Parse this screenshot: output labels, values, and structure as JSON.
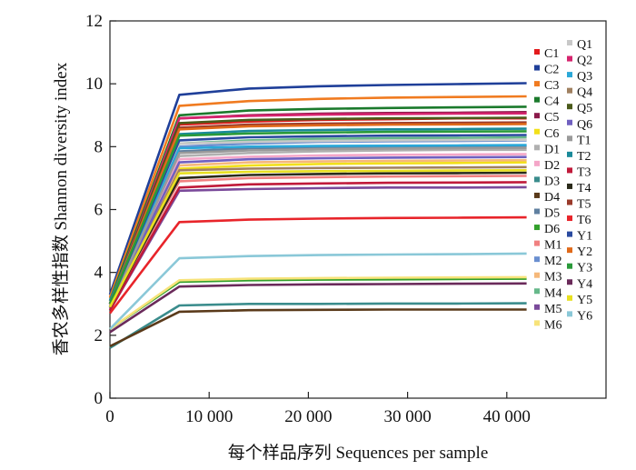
{
  "chart_data": {
    "type": "line",
    "xlabel": "每个样品序列  Sequences per sample",
    "ylabel": "香农多样性指数  Shannon diversity index",
    "xlim": [
      0,
      50000
    ],
    "ylim": [
      0,
      12
    ],
    "x_ticks": [
      "0",
      "10 000",
      "20 000",
      "30 000",
      "40 000"
    ],
    "y_ticks": [
      "0",
      "2",
      "4",
      "6",
      "8",
      "10",
      "12"
    ],
    "x_tick_values": [
      0,
      10000,
      20000,
      30000,
      40000
    ],
    "y_tick_values": [
      0,
      2,
      4,
      6,
      8,
      10,
      12
    ],
    "grid": false,
    "legend_position": "right",
    "series": [
      {
        "name": "C1",
        "color": "#e31a1c",
        "x": [
          0,
          7000,
          14000,
          21000,
          28000,
          35000,
          42000
        ],
        "values": [
          3.0,
          8.7,
          8.8,
          8.85,
          8.87,
          8.9,
          8.9
        ]
      },
      {
        "name": "C2",
        "color": "#1f3f99",
        "x": [
          0,
          7000,
          14000,
          21000,
          28000,
          35000,
          42000
        ],
        "values": [
          3.3,
          9.65,
          9.85,
          9.92,
          9.96,
          9.99,
          10.02
        ]
      },
      {
        "name": "C3",
        "color": "#f07b20",
        "x": [
          0,
          7000,
          14000,
          21000,
          28000,
          35000,
          42000
        ],
        "values": [
          3.2,
          9.3,
          9.45,
          9.52,
          9.56,
          9.58,
          9.6
        ]
      },
      {
        "name": "C4",
        "color": "#1b7a2c",
        "x": [
          0,
          7000,
          14000,
          21000,
          28000,
          35000,
          42000
        ],
        "values": [
          3.1,
          9.0,
          9.15,
          9.2,
          9.23,
          9.25,
          9.27
        ]
      },
      {
        "name": "C5",
        "color": "#8b1a4a",
        "x": [
          0,
          7000,
          14000,
          21000,
          28000,
          35000,
          42000
        ],
        "values": [
          3.0,
          8.9,
          9.0,
          9.05,
          9.07,
          9.08,
          9.1
        ]
      },
      {
        "name": "C6",
        "color": "#f2e01a",
        "x": [
          0,
          7000,
          14000,
          21000,
          28000,
          35000,
          42000
        ],
        "values": [
          2.9,
          7.3,
          7.4,
          7.45,
          7.47,
          7.48,
          7.5
        ]
      },
      {
        "name": "D1",
        "color": "#b0b0b0",
        "x": [
          0,
          7000,
          14000,
          21000,
          28000,
          35000,
          42000
        ],
        "values": [
          2.9,
          7.7,
          7.8,
          7.85,
          7.88,
          7.9,
          7.9
        ]
      },
      {
        "name": "D2",
        "color": "#f4a6c8",
        "x": [
          0,
          7000,
          14000,
          21000,
          28000,
          35000,
          42000
        ],
        "values": [
          2.9,
          7.6,
          7.68,
          7.72,
          7.74,
          7.75,
          7.76
        ]
      },
      {
        "name": "D3",
        "color": "#3a8c8c",
        "x": [
          0,
          7000,
          14000,
          21000,
          28000,
          35000,
          42000
        ],
        "values": [
          1.6,
          2.95,
          3.0,
          3.0,
          3.01,
          3.01,
          3.02
        ]
      },
      {
        "name": "D4",
        "color": "#5a3a1a",
        "x": [
          0,
          7000,
          14000,
          21000,
          28000,
          35000,
          42000
        ],
        "values": [
          1.65,
          2.75,
          2.8,
          2.81,
          2.82,
          2.82,
          2.82
        ]
      },
      {
        "name": "D5",
        "color": "#6080a0",
        "x": [
          0,
          7000,
          14000,
          21000,
          28000,
          35000,
          42000
        ],
        "values": [
          2.9,
          7.85,
          7.95,
          7.98,
          8.0,
          8.01,
          8.02
        ]
      },
      {
        "name": "D6",
        "color": "#33a02c",
        "x": [
          0,
          7000,
          14000,
          21000,
          28000,
          35000,
          42000
        ],
        "values": [
          2.2,
          3.7,
          3.75,
          3.77,
          3.78,
          3.79,
          3.8
        ]
      },
      {
        "name": "M1",
        "color": "#f08080",
        "x": [
          0,
          7000,
          14000,
          21000,
          28000,
          35000,
          42000
        ],
        "values": [
          2.9,
          6.9,
          7.0,
          7.03,
          7.05,
          7.06,
          7.07
        ]
      },
      {
        "name": "M2",
        "color": "#6a8fd0",
        "x": [
          0,
          7000,
          14000,
          21000,
          28000,
          35000,
          42000
        ],
        "values": [
          3.0,
          8.0,
          8.1,
          8.15,
          8.17,
          8.18,
          8.2
        ]
      },
      {
        "name": "M3",
        "color": "#f5b87a",
        "x": [
          0,
          7000,
          14000,
          21000,
          28000,
          35000,
          42000
        ],
        "values": [
          2.9,
          7.4,
          7.5,
          7.53,
          7.55,
          7.56,
          7.57
        ]
      },
      {
        "name": "M4",
        "color": "#66b88a",
        "x": [
          0,
          7000,
          14000,
          21000,
          28000,
          35000,
          42000
        ],
        "values": [
          3.0,
          8.1,
          8.2,
          8.25,
          8.27,
          8.28,
          8.3
        ]
      },
      {
        "name": "M5",
        "color": "#7a4a9a",
        "x": [
          0,
          7000,
          14000,
          21000,
          28000,
          35000,
          42000
        ],
        "values": [
          2.8,
          6.6,
          6.65,
          6.68,
          6.7,
          6.7,
          6.71
        ]
      },
      {
        "name": "M6",
        "color": "#f7e37a",
        "x": [
          0,
          7000,
          14000,
          21000,
          28000,
          35000,
          42000
        ],
        "values": [
          2.2,
          3.75,
          3.8,
          3.82,
          3.83,
          3.84,
          3.85
        ]
      },
      {
        "name": "Q1",
        "color": "#c8c8c8",
        "x": [
          0,
          7000,
          14000,
          21000,
          28000,
          35000,
          42000
        ],
        "values": [
          3.0,
          8.1,
          8.15,
          8.18,
          8.2,
          8.21,
          8.22
        ]
      },
      {
        "name": "Q2",
        "color": "#d6246e",
        "x": [
          0,
          7000,
          14000,
          21000,
          28000,
          35000,
          42000
        ],
        "values": [
          3.0,
          8.9,
          8.98,
          9.02,
          9.04,
          9.05,
          9.06
        ]
      },
      {
        "name": "Q3",
        "color": "#2aa8d8",
        "x": [
          0,
          7000,
          14000,
          21000,
          28000,
          35000,
          42000
        ],
        "values": [
          3.0,
          7.95,
          8.0,
          8.02,
          8.03,
          8.04,
          8.05
        ]
      },
      {
        "name": "Q4",
        "color": "#a08060",
        "x": [
          0,
          7000,
          14000,
          21000,
          28000,
          35000,
          42000
        ],
        "values": [
          2.9,
          7.25,
          7.3,
          7.32,
          7.33,
          7.34,
          7.35
        ]
      },
      {
        "name": "Q5",
        "color": "#4a5a1a",
        "x": [
          0,
          7000,
          14000,
          21000,
          28000,
          35000,
          42000
        ],
        "values": [
          3.0,
          8.75,
          8.85,
          8.88,
          8.9,
          8.91,
          8.92
        ]
      },
      {
        "name": "Q6",
        "color": "#7060c0",
        "x": [
          0,
          7000,
          14000,
          21000,
          28000,
          35000,
          42000
        ],
        "values": [
          2.9,
          7.5,
          7.6,
          7.63,
          7.65,
          7.66,
          7.67
        ]
      },
      {
        "name": "T1",
        "color": "#9a9a9a",
        "x": [
          0,
          7000,
          14000,
          21000,
          28000,
          35000,
          42000
        ],
        "values": [
          2.9,
          7.8,
          7.88,
          7.92,
          7.94,
          7.95,
          7.96
        ]
      },
      {
        "name": "T2",
        "color": "#1a8a9a",
        "x": [
          0,
          7000,
          14000,
          21000,
          28000,
          35000,
          42000
        ],
        "values": [
          3.1,
          8.4,
          8.5,
          8.53,
          8.55,
          8.56,
          8.57
        ]
      },
      {
        "name": "T3",
        "color": "#c01a3a",
        "x": [
          0,
          7000,
          14000,
          21000,
          28000,
          35000,
          42000
        ],
        "values": [
          2.8,
          6.7,
          6.8,
          6.83,
          6.85,
          6.86,
          6.87
        ]
      },
      {
        "name": "T4",
        "color": "#2a2a1a",
        "x": [
          0,
          7000,
          14000,
          21000,
          28000,
          35000,
          42000
        ],
        "values": [
          2.9,
          7.0,
          7.1,
          7.13,
          7.15,
          7.16,
          7.17
        ]
      },
      {
        "name": "T5",
        "color": "#9a3a2a",
        "x": [
          0,
          7000,
          14000,
          21000,
          28000,
          35000,
          42000
        ],
        "values": [
          3.0,
          8.6,
          8.7,
          8.73,
          8.75,
          8.76,
          8.77
        ]
      },
      {
        "name": "T6",
        "color": "#e8242a",
        "x": [
          0,
          7000,
          14000,
          21000,
          28000,
          35000,
          42000
        ],
        "values": [
          2.7,
          5.6,
          5.68,
          5.71,
          5.73,
          5.74,
          5.75
        ]
      },
      {
        "name": "Y1",
        "color": "#2a4aa0",
        "x": [
          0,
          7000,
          14000,
          21000,
          28000,
          35000,
          42000
        ],
        "values": [
          3.0,
          8.2,
          8.3,
          8.33,
          8.35,
          8.36,
          8.37
        ]
      },
      {
        "name": "Y2",
        "color": "#e06a1a",
        "x": [
          0,
          7000,
          14000,
          21000,
          28000,
          35000,
          42000
        ],
        "values": [
          3.0,
          8.55,
          8.65,
          8.68,
          8.7,
          8.71,
          8.72
        ]
      },
      {
        "name": "Y3",
        "color": "#2a9a3a",
        "x": [
          0,
          7000,
          14000,
          21000,
          28000,
          35000,
          42000
        ],
        "values": [
          3.0,
          8.35,
          8.42,
          8.45,
          8.47,
          8.48,
          8.49
        ]
      },
      {
        "name": "Y4",
        "color": "#6a2a5a",
        "x": [
          0,
          7000,
          14000,
          21000,
          28000,
          35000,
          42000
        ],
        "values": [
          2.1,
          3.55,
          3.6,
          3.62,
          3.63,
          3.64,
          3.65
        ]
      },
      {
        "name": "Y5",
        "color": "#e8e020",
        "x": [
          0,
          7000,
          14000,
          21000,
          28000,
          35000,
          42000
        ],
        "values": [
          2.9,
          7.15,
          7.2,
          7.22,
          7.23,
          7.24,
          7.25
        ]
      },
      {
        "name": "Y6",
        "color": "#8ac8d8",
        "x": [
          0,
          7000,
          14000,
          21000,
          28000,
          35000,
          42000
        ],
        "values": [
          2.2,
          4.45,
          4.52,
          4.55,
          4.57,
          4.58,
          4.6
        ]
      }
    ]
  }
}
